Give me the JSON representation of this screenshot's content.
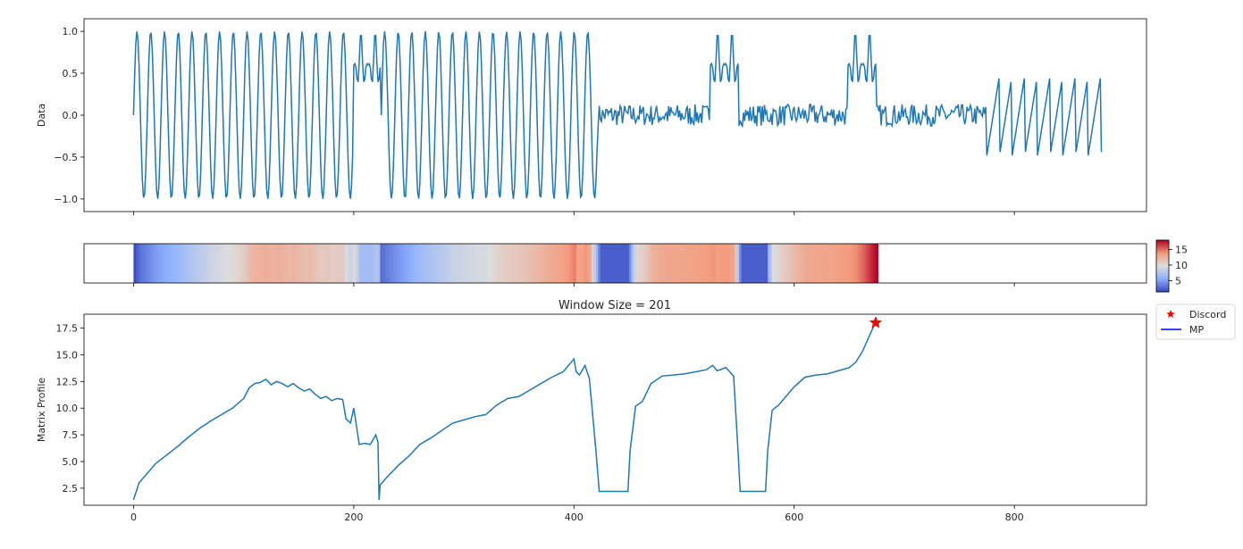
{
  "chart_data": [
    {
      "type": "line",
      "name": "data-panel",
      "ylabel": "Data",
      "xlim": [
        -45,
        920
      ],
      "ylim": [
        -1.15,
        1.15
      ],
      "yticks": [
        1.0,
        0.5,
        0.0,
        -0.5,
        -1.0
      ],
      "ytick_labels": [
        "1.0",
        "0.5",
        "0.0",
        "−0.5",
        "−1.0"
      ],
      "xticks": [
        0,
        200,
        400,
        600,
        800
      ],
      "show_xtick_labels": false,
      "color": "#1f77b4",
      "segments": [
        {
          "start": 0,
          "end": 225,
          "kind": "sine",
          "period": 12.5,
          "amp": 1.0
        },
        {
          "start": 200,
          "end": 225,
          "kind": "bump",
          "level": 0.6,
          "amp": 0.4
        },
        {
          "start": 225,
          "end": 422,
          "kind": "sine",
          "period": 12.3,
          "amp": 1.0
        },
        {
          "start": 422,
          "end": 524,
          "kind": "noise",
          "level": 0.0,
          "amp": 0.13
        },
        {
          "start": 524,
          "end": 550,
          "kind": "bump",
          "level": 0.6,
          "amp": 0.4
        },
        {
          "start": 550,
          "end": 649,
          "kind": "noise",
          "level": 0.0,
          "amp": 0.13
        },
        {
          "start": 649,
          "end": 675,
          "kind": "bump",
          "level": 0.6,
          "amp": 0.4
        },
        {
          "start": 675,
          "end": 775,
          "kind": "noise",
          "level": 0.0,
          "amp": 0.13
        },
        {
          "start": 775,
          "end": 880,
          "kind": "sawtooth",
          "period": 11.5,
          "low": -0.48,
          "high": 0.48
        }
      ]
    },
    {
      "type": "heatmap",
      "name": "mp-heatmap",
      "colormap": "coolwarm",
      "clim": [
        1.4,
        18.0
      ],
      "colorbar_ticks": [
        5,
        10,
        15
      ],
      "colorbar_tick_labels": [
        "5",
        "10",
        "15"
      ],
      "xlim": [
        -45,
        920
      ],
      "xticks": [
        0,
        200,
        400,
        600,
        800
      ],
      "show_xtick_labels": false,
      "source": "matrix-profile"
    },
    {
      "type": "line",
      "name": "matrix-profile-panel",
      "title": "Window Size = 201",
      "ylabel": "Matrix Profile",
      "xlim": [
        -45,
        920
      ],
      "ylim": [
        0.9,
        18.8
      ],
      "yticks": [
        2.5,
        5.0,
        7.5,
        10.0,
        12.5,
        15.0,
        17.5
      ],
      "ytick_labels": [
        "2.5",
        "5.0",
        "7.5",
        "10.0",
        "12.5",
        "15.0",
        "17.5"
      ],
      "xticks": [
        0,
        200,
        400,
        600,
        800
      ],
      "xtick_labels": [
        "0",
        "200",
        "400",
        "600",
        "800"
      ],
      "color": "#1f77b4",
      "x": [
        0,
        5,
        10,
        20,
        30,
        40,
        50,
        60,
        70,
        80,
        90,
        100,
        105,
        110,
        115,
        120,
        125,
        130,
        135,
        140,
        145,
        150,
        155,
        160,
        165,
        170,
        175,
        180,
        185,
        190,
        193,
        197,
        200,
        205,
        210,
        215,
        220,
        222,
        223,
        224,
        230,
        240,
        250,
        260,
        270,
        280,
        290,
        300,
        310,
        320,
        330,
        340,
        350,
        360,
        370,
        380,
        390,
        400,
        402,
        405,
        410,
        414,
        420,
        423,
        426,
        430,
        440,
        449,
        451,
        456,
        462,
        470,
        480,
        490,
        500,
        510,
        520,
        526,
        530,
        538,
        545,
        549,
        551,
        560,
        574,
        576,
        580,
        586,
        600,
        610,
        620,
        630,
        640,
        650,
        656,
        662,
        668,
        672,
        674
      ],
      "y": [
        1.4,
        3.0,
        3.6,
        4.8,
        5.6,
        6.4,
        7.3,
        8.1,
        8.8,
        9.4,
        10.0,
        10.9,
        11.9,
        12.3,
        12.4,
        12.7,
        12.2,
        12.5,
        12.3,
        12.0,
        12.3,
        11.9,
        11.6,
        11.8,
        11.3,
        10.9,
        11.1,
        10.7,
        10.9,
        10.8,
        9.0,
        8.6,
        10.0,
        6.6,
        6.7,
        6.6,
        7.5,
        6.8,
        1.4,
        2.8,
        3.5,
        4.6,
        5.5,
        6.6,
        7.2,
        7.9,
        8.6,
        8.9,
        9.2,
        9.4,
        10.3,
        10.9,
        11.1,
        11.7,
        12.3,
        12.9,
        13.4,
        14.6,
        13.4,
        13.1,
        14.0,
        12.8,
        6.0,
        2.2,
        2.2,
        2.2,
        2.2,
        2.2,
        6.0,
        10.2,
        10.6,
        12.3,
        13.0,
        13.1,
        13.2,
        13.4,
        13.6,
        14.0,
        13.5,
        13.8,
        13.0,
        6.0,
        2.2,
        2.2,
        2.2,
        6.0,
        9.8,
        10.3,
        12.0,
        12.9,
        13.1,
        13.2,
        13.5,
        13.8,
        14.3,
        15.3,
        16.7,
        17.6,
        18.0
      ],
      "annotations": [
        {
          "label": "Discord",
          "x": 674,
          "y": 18.0,
          "marker": "star",
          "color": "#ff0000"
        }
      ],
      "legend": {
        "position": "outside-top-right",
        "entries": [
          {
            "label": "Discord",
            "color": "#ff0000",
            "marker": "star"
          },
          {
            "label": "MP",
            "color": "#0000ff",
            "marker": "line"
          }
        ]
      }
    }
  ]
}
